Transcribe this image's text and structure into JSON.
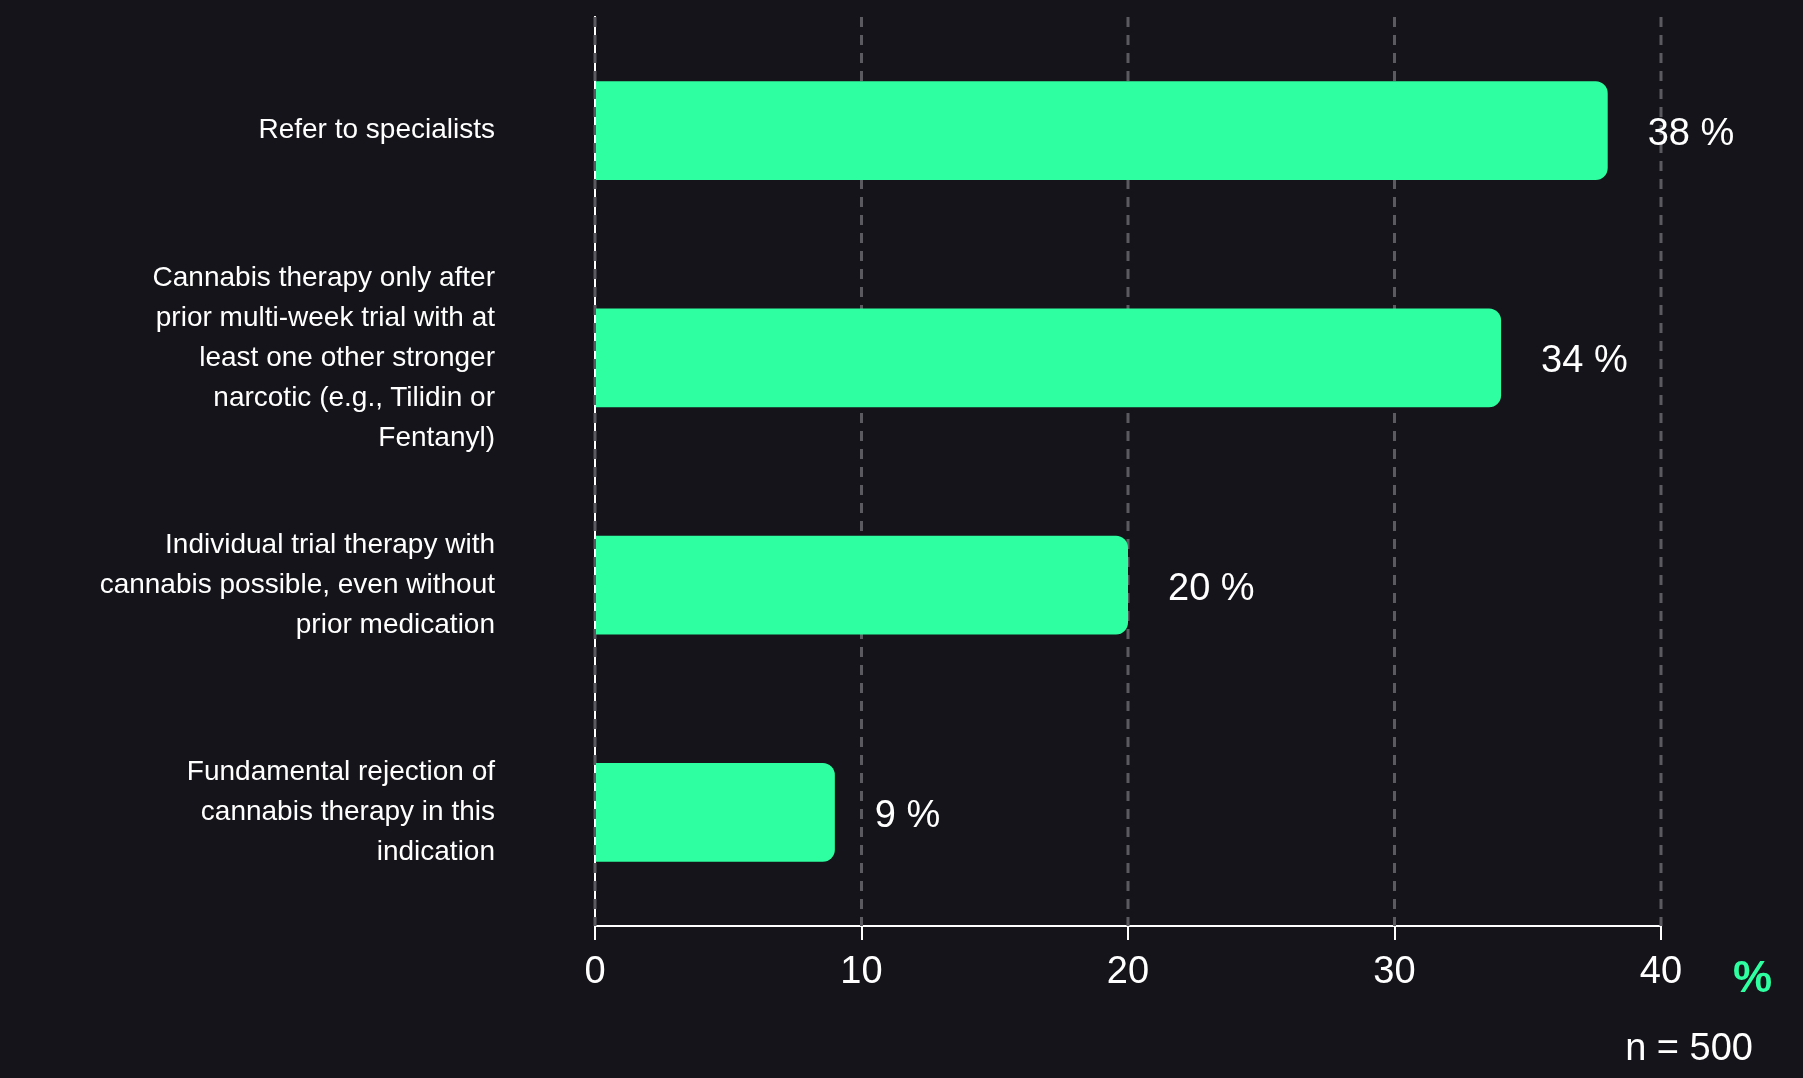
{
  "chart_data": {
    "type": "bar",
    "orientation": "horizontal",
    "categories": [
      "Refer to specialists",
      "Cannabis therapy only after prior multi-week trial with at least one other stronger narcotic (e.g., Tilidin or Fentanyl)",
      "Individual trial therapy with cannabis possible, even without prior medication",
      "Fundamental rejection of cannabis therapy in this indication"
    ],
    "values": [
      38,
      34,
      20,
      9
    ],
    "value_labels": [
      "38 %",
      "34 %",
      "20 %",
      "9 %"
    ],
    "color": "#2effa0",
    "xlim": [
      0,
      40
    ],
    "xticks": [
      0,
      10,
      20,
      30,
      40
    ],
    "xlabel": "%",
    "grid": "x",
    "legend": false,
    "annotations": [
      "n = 500"
    ]
  }
}
